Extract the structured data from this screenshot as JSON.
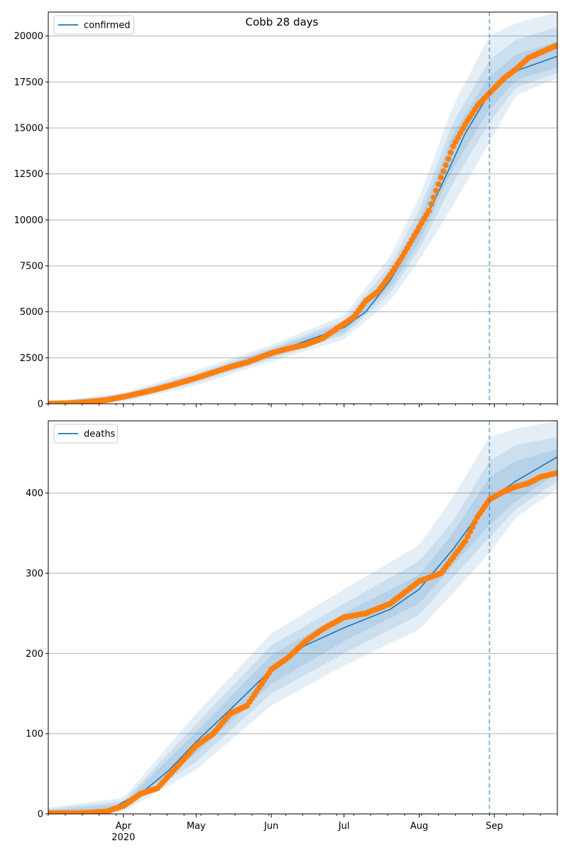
{
  "figure": {
    "title": "Cobb 28 days"
  },
  "colors": {
    "model": "#1f77b4",
    "observed": "#ff7f0e",
    "band": "#1f77b4",
    "grid": "#b0b0b0",
    "axis": "#000000"
  },
  "chart_data": [
    {
      "type": "line",
      "panel": "top",
      "legend": [
        "confirmed"
      ],
      "legend_position": "top-left",
      "grid": "y",
      "x_range": [
        "2020-03-01",
        "2020-09-27"
      ],
      "ylim": [
        0,
        21300
      ],
      "y_ticks": [
        0,
        2500,
        5000,
        7500,
        10000,
        12500,
        15000,
        17500,
        20000
      ],
      "x_major_ticks": [
        {
          "date": "2020-04-01",
          "label": "Apr",
          "sublabel": "2020"
        },
        {
          "date": "2020-05-01",
          "label": "May"
        },
        {
          "date": "2020-06-01",
          "label": "Jun"
        },
        {
          "date": "2020-07-01",
          "label": "Jul"
        },
        {
          "date": "2020-08-01",
          "label": "Aug"
        },
        {
          "date": "2020-09-01",
          "label": "Sep"
        }
      ],
      "vline_date": "2020-08-30",
      "series": [
        {
          "name": "confirmed",
          "role": "model",
          "points": [
            [
              "2020-03-01",
              0
            ],
            [
              "2020-03-16",
              60
            ],
            [
              "2020-03-23",
              160
            ],
            [
              "2020-04-01",
              360
            ],
            [
              "2020-04-15",
              750
            ],
            [
              "2020-05-01",
              1400
            ],
            [
              "2020-05-15",
              2000
            ],
            [
              "2020-06-01",
              2750
            ],
            [
              "2020-06-15",
              3400
            ],
            [
              "2020-07-01",
              4150
            ],
            [
              "2020-07-10",
              5000
            ],
            [
              "2020-07-20",
              6700
            ],
            [
              "2020-08-01",
              9400
            ],
            [
              "2020-08-10",
              11800
            ],
            [
              "2020-08-20",
              14700
            ],
            [
              "2020-08-30",
              16900
            ],
            [
              "2020-09-10",
              18100
            ],
            [
              "2020-09-27",
              18900
            ]
          ]
        },
        {
          "role": "observed",
          "points": [
            [
              "2020-03-01",
              5
            ],
            [
              "2020-03-10",
              30
            ],
            [
              "2020-03-18",
              100
            ],
            [
              "2020-03-25",
              200
            ],
            [
              "2020-04-01",
              380
            ],
            [
              "2020-04-08",
              580
            ],
            [
              "2020-04-15",
              800
            ],
            [
              "2020-04-22",
              1050
            ],
            [
              "2020-05-01",
              1400
            ],
            [
              "2020-05-08",
              1700
            ],
            [
              "2020-05-15",
              2000
            ],
            [
              "2020-05-22",
              2250
            ],
            [
              "2020-06-01",
              2750
            ],
            [
              "2020-06-08",
              3000
            ],
            [
              "2020-06-15",
              3200
            ],
            [
              "2020-06-22",
              3550
            ],
            [
              "2020-07-01",
              4350
            ],
            [
              "2020-07-05",
              4700
            ],
            [
              "2020-07-10",
              5600
            ],
            [
              "2020-07-15",
              6100
            ],
            [
              "2020-07-20",
              7000
            ],
            [
              "2020-07-25",
              8000
            ],
            [
              "2020-08-01",
              9600
            ],
            [
              "2020-08-05",
              10500
            ],
            [
              "2020-08-10",
              12300
            ],
            [
              "2020-08-15",
              14000
            ],
            [
              "2020-08-20",
              15200
            ],
            [
              "2020-08-25",
              16200
            ],
            [
              "2020-08-30",
              16900
            ],
            [
              "2020-09-05",
              17700
            ],
            [
              "2020-09-10",
              18200
            ],
            [
              "2020-09-15",
              18800
            ],
            [
              "2020-09-20",
              19100
            ],
            [
              "2020-09-27",
              19500
            ]
          ]
        }
      ],
      "bands": [
        {
          "level": "outer",
          "points": [
            [
              "2020-03-01",
              0,
              100
            ],
            [
              "2020-04-01",
              100,
              600
            ],
            [
              "2020-05-01",
              1000,
              1800
            ],
            [
              "2020-06-01",
              2300,
              3200
            ],
            [
              "2020-07-01",
              3500,
              4800
            ],
            [
              "2020-07-20",
              5600,
              8000
            ],
            [
              "2020-08-01",
              7800,
              11200
            ],
            [
              "2020-08-15",
              10800,
              16200
            ],
            [
              "2020-08-30",
              14200,
              20000
            ],
            [
              "2020-09-10",
              16800,
              20700
            ],
            [
              "2020-09-27",
              17700,
              21300
            ]
          ]
        },
        {
          "level": "middle",
          "points": [
            [
              "2020-03-01",
              0,
              80
            ],
            [
              "2020-04-01",
              180,
              520
            ],
            [
              "2020-05-01",
              1150,
              1650
            ],
            [
              "2020-06-01",
              2450,
              3050
            ],
            [
              "2020-07-01",
              3750,
              4550
            ],
            [
              "2020-07-20",
              6000,
              7500
            ],
            [
              "2020-08-01",
              8400,
              10500
            ],
            [
              "2020-08-15",
              12000,
              15300
            ],
            [
              "2020-08-30",
              15300,
              18700
            ],
            [
              "2020-09-10",
              17200,
              19800
            ],
            [
              "2020-09-27",
              18000,
              20500
            ]
          ]
        },
        {
          "level": "inner",
          "points": [
            [
              "2020-03-01",
              0,
              60
            ],
            [
              "2020-04-01",
              250,
              460
            ],
            [
              "2020-05-01",
              1250,
              1550
            ],
            [
              "2020-06-01",
              2550,
              2950
            ],
            [
              "2020-07-01",
              3900,
              4400
            ],
            [
              "2020-07-20",
              6300,
              7100
            ],
            [
              "2020-08-01",
              8800,
              10000
            ],
            [
              "2020-08-15",
              12800,
              14700
            ],
            [
              "2020-08-30",
              16000,
              17800
            ],
            [
              "2020-09-10",
              17600,
              19000
            ],
            [
              "2020-09-27",
              18300,
              19700
            ]
          ]
        }
      ]
    },
    {
      "type": "line",
      "panel": "bottom",
      "legend": [
        "deaths"
      ],
      "legend_position": "top-left",
      "grid": "y",
      "x_range": [
        "2020-03-01",
        "2020-09-27"
      ],
      "ylim": [
        0,
        490
      ],
      "y_ticks": [
        0,
        100,
        200,
        300,
        400
      ],
      "x_major_ticks": [
        {
          "date": "2020-04-01",
          "label": "Apr",
          "sublabel": "2020"
        },
        {
          "date": "2020-05-01",
          "label": "May"
        },
        {
          "date": "2020-06-01",
          "label": "Jun"
        },
        {
          "date": "2020-07-01",
          "label": "Jul"
        },
        {
          "date": "2020-08-01",
          "label": "Aug"
        },
        {
          "date": "2020-09-01",
          "label": "Sep"
        }
      ],
      "vline_date": "2020-08-30",
      "series": [
        {
          "name": "deaths",
          "role": "model",
          "points": [
            [
              "2020-03-01",
              0
            ],
            [
              "2020-03-20",
              2
            ],
            [
              "2020-03-28",
              8
            ],
            [
              "2020-04-10",
              30
            ],
            [
              "2020-04-20",
              55
            ],
            [
              "2020-05-01",
              90
            ],
            [
              "2020-05-15",
              130
            ],
            [
              "2020-06-01",
              180
            ],
            [
              "2020-06-15",
              210
            ],
            [
              "2020-07-01",
              232
            ],
            [
              "2020-07-20",
              255
            ],
            [
              "2020-08-01",
              280
            ],
            [
              "2020-08-15",
              330
            ],
            [
              "2020-08-30",
              392
            ],
            [
              "2020-09-10",
              415
            ],
            [
              "2020-09-27",
              445
            ]
          ]
        },
        {
          "role": "observed",
          "points": [
            [
              "2020-03-01",
              1
            ],
            [
              "2020-03-15",
              1
            ],
            [
              "2020-03-25",
              3
            ],
            [
              "2020-04-01",
              10
            ],
            [
              "2020-04-08",
              25
            ],
            [
              "2020-04-15",
              32
            ],
            [
              "2020-04-22",
              55
            ],
            [
              "2020-05-01",
              85
            ],
            [
              "2020-05-08",
              100
            ],
            [
              "2020-05-15",
              125
            ],
            [
              "2020-05-22",
              135
            ],
            [
              "2020-06-01",
              180
            ],
            [
              "2020-06-08",
              195
            ],
            [
              "2020-06-15",
              215
            ],
            [
              "2020-06-22",
              230
            ],
            [
              "2020-07-01",
              245
            ],
            [
              "2020-07-10",
              250
            ],
            [
              "2020-07-20",
              262
            ],
            [
              "2020-08-01",
              290
            ],
            [
              "2020-08-10",
              300
            ],
            [
              "2020-08-15",
              320
            ],
            [
              "2020-08-20",
              340
            ],
            [
              "2020-08-25",
              370
            ],
            [
              "2020-08-30",
              392
            ],
            [
              "2020-09-05",
              402
            ],
            [
              "2020-09-10",
              408
            ],
            [
              "2020-09-15",
              412
            ],
            [
              "2020-09-20",
              420
            ],
            [
              "2020-09-27",
              425
            ]
          ]
        }
      ],
      "bands": [
        {
          "level": "outer",
          "points": [
            [
              "2020-03-01",
              0,
              8
            ],
            [
              "2020-04-01",
              3,
              20
            ],
            [
              "2020-05-01",
              55,
              125
            ],
            [
              "2020-06-01",
              135,
              225
            ],
            [
              "2020-07-01",
              185,
              280
            ],
            [
              "2020-08-01",
              230,
              335
            ],
            [
              "2020-08-15",
              275,
              395
            ],
            [
              "2020-08-30",
              325,
              470
            ],
            [
              "2020-09-10",
              370,
              480
            ],
            [
              "2020-09-27",
              405,
              490
            ]
          ]
        },
        {
          "level": "middle",
          "points": [
            [
              "2020-03-01",
              0,
              6
            ],
            [
              "2020-04-01",
              5,
              16
            ],
            [
              "2020-05-01",
              65,
              112
            ],
            [
              "2020-06-01",
              150,
              210
            ],
            [
              "2020-07-01",
              200,
              262
            ],
            [
              "2020-08-01",
              248,
              315
            ],
            [
              "2020-08-15",
              295,
              365
            ],
            [
              "2020-08-30",
              345,
              440
            ],
            [
              "2020-09-10",
              380,
              460
            ],
            [
              "2020-09-27",
              415,
              470
            ]
          ]
        },
        {
          "level": "inner",
          "points": [
            [
              "2020-03-01",
              0,
              4
            ],
            [
              "2020-04-01",
              7,
              13
            ],
            [
              "2020-05-01",
              75,
              102
            ],
            [
              "2020-06-01",
              162,
              198
            ],
            [
              "2020-07-01",
              215,
              250
            ],
            [
              "2020-08-01",
              262,
              298
            ],
            [
              "2020-08-15",
              310,
              350
            ],
            [
              "2020-08-30",
              360,
              420
            ],
            [
              "2020-09-10",
              390,
              440
            ],
            [
              "2020-09-27",
              425,
              455
            ]
          ]
        }
      ]
    }
  ]
}
